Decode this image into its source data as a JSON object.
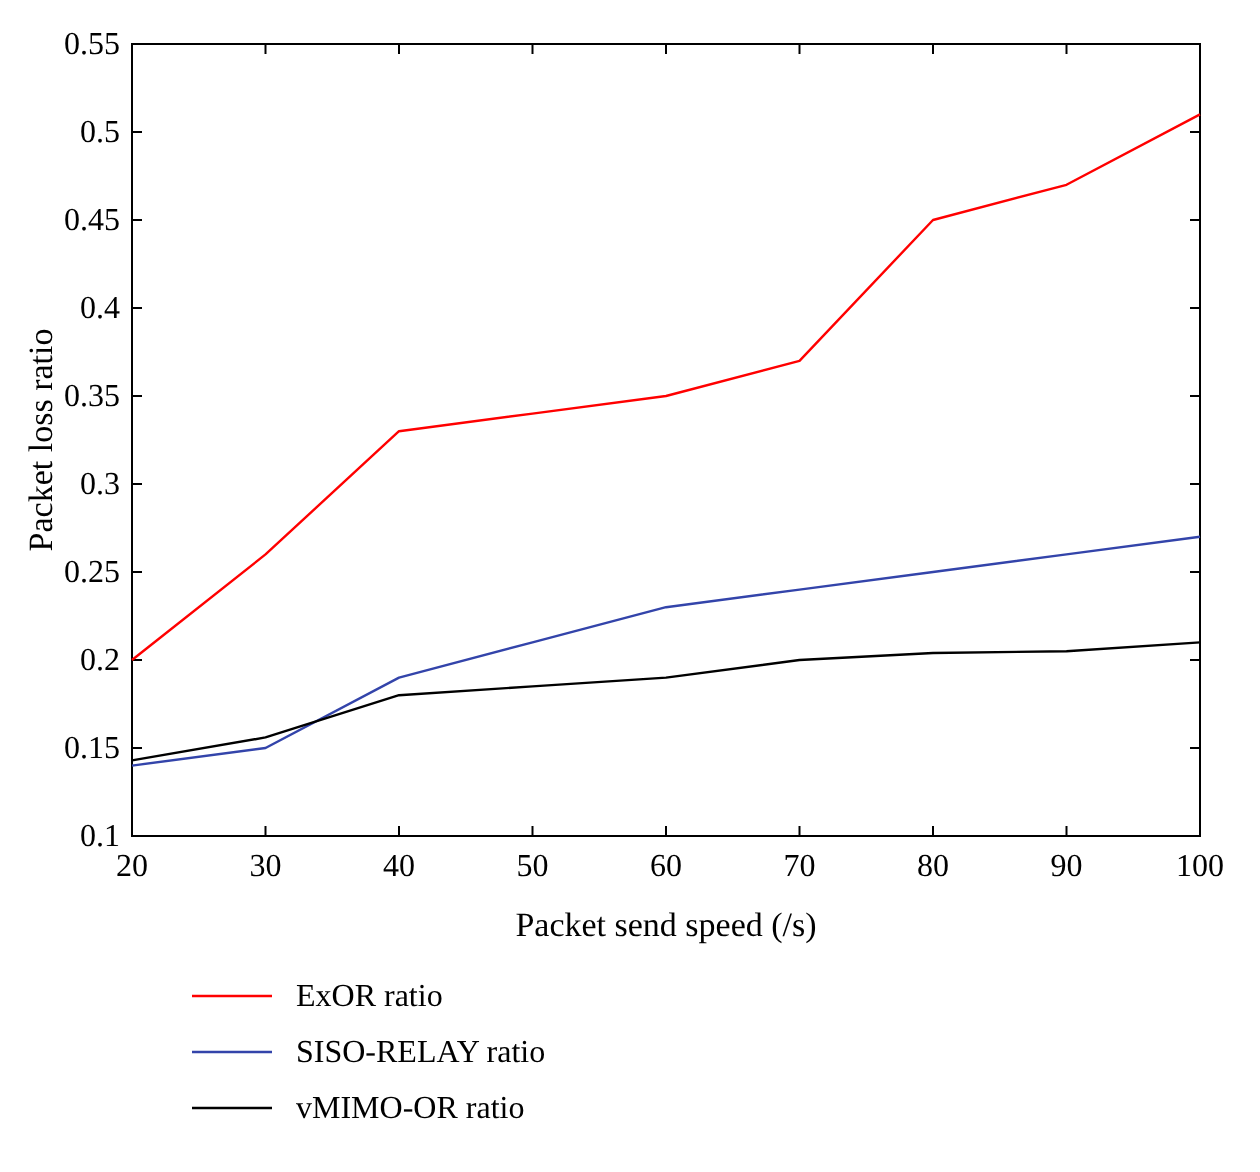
{
  "chart_data": {
    "type": "line",
    "xlabel": "Packet send speed (/s)",
    "ylabel": "Packet loss ratio",
    "x": [
      20,
      30,
      40,
      50,
      60,
      70,
      80,
      90,
      100
    ],
    "series": [
      {
        "name": "ExOR ratio",
        "color": "#ff0000",
        "values": [
          0.2,
          0.26,
          0.33,
          0.34,
          0.35,
          0.37,
          0.45,
          0.47,
          0.51
        ]
      },
      {
        "name": "SISO-RELAY ratio",
        "color": "#3344aa",
        "values": [
          0.14,
          0.15,
          0.19,
          0.21,
          0.23,
          0.24,
          0.25,
          0.26,
          0.27
        ]
      },
      {
        "name": "vMIMO-OR ratio",
        "color": "#000000",
        "values": [
          0.143,
          0.156,
          0.18,
          0.185,
          0.19,
          0.2,
          0.204,
          0.205,
          0.21
        ]
      }
    ],
    "xlim": [
      20,
      100
    ],
    "xticks": [
      20,
      30,
      40,
      50,
      60,
      70,
      80,
      90,
      100
    ],
    "ylim": [
      0.1,
      0.55
    ],
    "yticks": [
      0.1,
      0.15,
      0.2,
      0.25,
      0.3,
      0.35,
      0.4,
      0.45,
      0.5,
      0.55
    ],
    "grid": false,
    "legend": "bottom",
    "marker": "none",
    "line_style": "solid"
  }
}
